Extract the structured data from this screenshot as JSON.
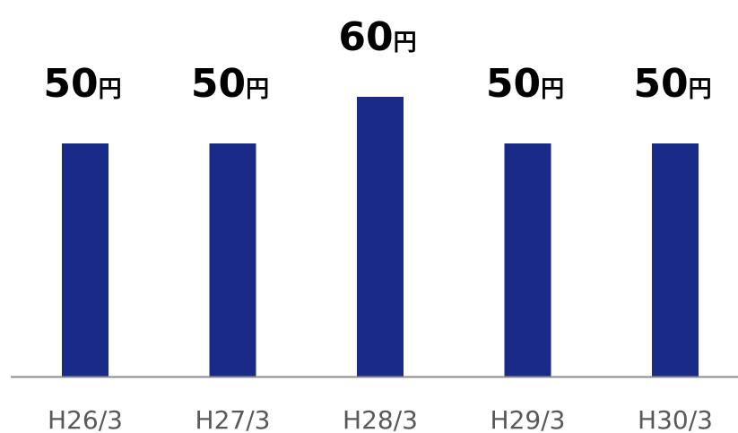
{
  "chart_data": {
    "type": "bar",
    "categories": [
      "H26/3",
      "H27/3",
      "H28/3",
      "H29/3",
      "H30/3"
    ],
    "values": [
      50,
      50,
      60,
      50,
      50
    ],
    "value_unit": "円",
    "title": "",
    "xlabel": "",
    "ylabel": "",
    "ylim": [
      0,
      72
    ],
    "grid": false,
    "legend": "none",
    "bar_color": "#1a2a87",
    "axis_color": "#8c8c8c"
  }
}
